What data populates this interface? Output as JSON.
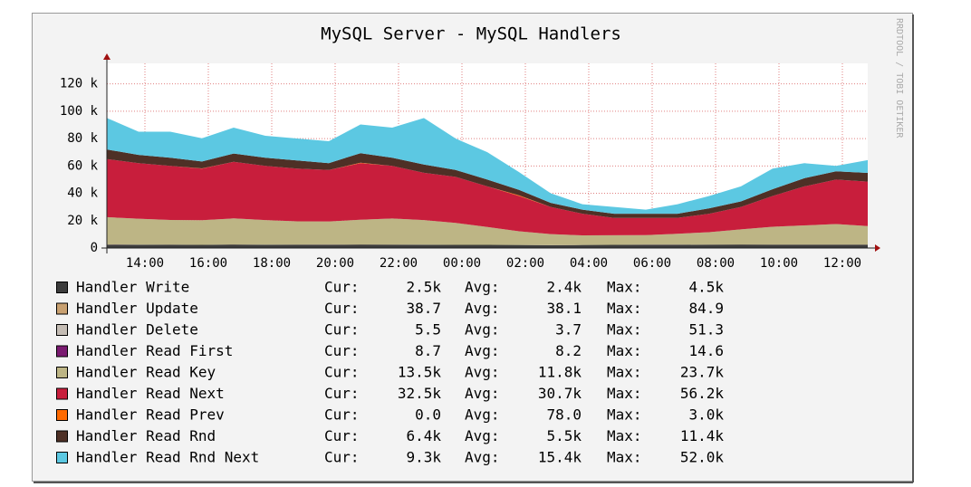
{
  "chart_data": {
    "type": "stacked-area",
    "title": "MySQL Server - MySQL Handlers",
    "watermark": "RRDTOOL / TOBI OETIKER",
    "x": [
      12.8,
      13.8,
      14.8,
      15.8,
      16.8,
      17.8,
      18.8,
      19.8,
      20.8,
      21.8,
      22.8,
      23.8,
      24.8,
      25.8,
      26.8,
      27.8,
      28.8,
      29.8,
      30.8,
      31.8,
      32.8,
      33.8,
      34.8,
      35.8,
      36.8
    ],
    "xlim": [
      12.8,
      36.8
    ],
    "xticks": [
      {
        "value": 14,
        "label": "14:00"
      },
      {
        "value": 16,
        "label": "16:00"
      },
      {
        "value": 18,
        "label": "18:00"
      },
      {
        "value": 20,
        "label": "20:00"
      },
      {
        "value": 22,
        "label": "22:00"
      },
      {
        "value": 24,
        "label": "00:00"
      },
      {
        "value": 26,
        "label": "02:00"
      },
      {
        "value": 28,
        "label": "04:00"
      },
      {
        "value": 30,
        "label": "06:00"
      },
      {
        "value": 32,
        "label": "08:00"
      },
      {
        "value": 34,
        "label": "10:00"
      },
      {
        "value": 36,
        "label": "12:00"
      }
    ],
    "ylim": [
      0,
      135000
    ],
    "yticks": [
      0,
      {
        "value": 20000,
        "label": "20 k"
      },
      {
        "value": 40000,
        "label": "40 k"
      },
      {
        "value": 60000,
        "label": "60 k"
      },
      {
        "value": 80000,
        "label": "80 k"
      },
      {
        "value": 100000,
        "label": "100 k"
      },
      {
        "value": 120000,
        "label": "120 k"
      }
    ],
    "grid": true,
    "stat_labels": [
      "Cur:",
      "Avg:",
      "Max:"
    ],
    "series": [
      {
        "name": "Handler Write",
        "color": "#3c3c3c",
        "values": [
          2500,
          2400,
          2500,
          2300,
          2600,
          2400,
          2500,
          2400,
          2600,
          2500,
          2400,
          2300,
          2300,
          2200,
          2100,
          2200,
          2300,
          2400,
          2400,
          2500,
          2600,
          2500,
          2500,
          2500,
          2500
        ],
        "stats": [
          {
            "value": 2500,
            "label": "2.5k"
          },
          {
            "value": 2400,
            "label": "2.4k"
          },
          {
            "value": 4500,
            "label": "4.5k"
          }
        ]
      },
      {
        "name": "Handler Update",
        "color": "#c8a070",
        "values": [
          40,
          39,
          38,
          37,
          41,
          38,
          39,
          37,
          40,
          39,
          38,
          36,
          35,
          33,
          30,
          31,
          32,
          34,
          36,
          38,
          40,
          39,
          38,
          39,
          38.7
        ],
        "stats": [
          {
            "value": 38.7,
            "label": "38.7"
          },
          {
            "value": 38.1,
            "label": "38.1"
          },
          {
            "value": 84.9,
            "label": "84.9"
          }
        ]
      },
      {
        "name": "Handler Delete",
        "color": "#c4bcb4",
        "values": [
          4,
          3,
          4,
          3,
          5,
          3,
          4,
          3,
          4,
          4,
          3,
          3,
          3,
          2,
          2,
          2,
          3,
          3,
          3,
          4,
          4,
          4,
          5,
          5,
          5.5
        ],
        "stats": [
          {
            "value": 5.5,
            "label": "5.5"
          },
          {
            "value": 3.7,
            "label": "3.7"
          },
          {
            "value": 51.3,
            "label": "51.3"
          }
        ]
      },
      {
        "name": "Handler Read First",
        "color": "#7a1a70",
        "values": [
          9,
          8,
          8,
          8,
          9,
          8,
          8,
          8,
          9,
          9,
          8,
          8,
          8,
          7,
          7,
          7,
          8,
          8,
          8,
          8,
          9,
          9,
          9,
          9,
          8.7
        ],
        "stats": [
          {
            "value": 8.7,
            "label": "8.7"
          },
          {
            "value": 8.2,
            "label": "8.2"
          },
          {
            "value": 14.6,
            "label": "14.6"
          }
        ]
      },
      {
        "name": "Handler Read Key",
        "color": "#bdb585",
        "values": [
          20000,
          19000,
          18000,
          18000,
          19000,
          18000,
          17000,
          17000,
          18000,
          19000,
          18000,
          16000,
          13000,
          10000,
          8000,
          7000,
          7000,
          7000,
          8000,
          9000,
          11000,
          13000,
          14000,
          15000,
          13500
        ],
        "stats": [
          {
            "value": 13500,
            "label": "13.5k"
          },
          {
            "value": 11800,
            "label": "11.8k"
          },
          {
            "value": 23700,
            "label": "23.7k"
          }
        ]
      },
      {
        "name": "Handler Read Next",
        "color": "#c81e3c",
        "values": [
          42500,
          40600,
          39500,
          37700,
          41400,
          39600,
          38500,
          37600,
          41400,
          38500,
          34600,
          33700,
          29700,
          25800,
          19900,
          15800,
          12700,
          12600,
          11600,
          13500,
          16400,
          22500,
          28500,
          32500,
          32500
        ],
        "stats": [
          {
            "value": 32500,
            "label": "32.5k"
          },
          {
            "value": 30700,
            "label": "30.7k"
          },
          {
            "value": 56200,
            "label": "56.2k"
          }
        ]
      },
      {
        "name": "Handler Read Prev",
        "color": "#ff6a00",
        "values": [
          0,
          0,
          0,
          200,
          0,
          0,
          0,
          0,
          300,
          0,
          0,
          0,
          0,
          500,
          0,
          0,
          0,
          0,
          0,
          0,
          0,
          0,
          0,
          0,
          0
        ],
        "stats": [
          {
            "value": 0,
            "label": "0.0"
          },
          {
            "value": 78,
            "label": "78.0"
          },
          {
            "value": 3000,
            "label": "3.0k"
          }
        ]
      },
      {
        "name": "Handler Read Rnd",
        "color": "#4e3026",
        "values": [
          7000,
          6000,
          6000,
          5000,
          6000,
          6000,
          6000,
          5000,
          7000,
          6000,
          6000,
          5000,
          5000,
          4000,
          3000,
          3000,
          3000,
          3000,
          3000,
          4000,
          4000,
          5000,
          6000,
          6000,
          6400
        ],
        "stats": [
          {
            "value": 6400,
            "label": "6.4k"
          },
          {
            "value": 5500,
            "label": "5.5k"
          },
          {
            "value": 11400,
            "label": "11.4k"
          }
        ]
      },
      {
        "name": "Handler Read Rnd Next",
        "color": "#5cc8e2",
        "values": [
          23000,
          17000,
          19000,
          17000,
          19000,
          16000,
          16000,
          16000,
          21000,
          22000,
          34000,
          23000,
          20000,
          13000,
          7000,
          4000,
          5000,
          3000,
          7000,
          9000,
          11000,
          15000,
          11000,
          4000,
          9300
        ],
        "stats": [
          {
            "value": 9300,
            "label": "9.3k"
          },
          {
            "value": 15400,
            "label": "15.4k"
          },
          {
            "value": 52000,
            "label": "52.0k"
          }
        ]
      }
    ]
  }
}
